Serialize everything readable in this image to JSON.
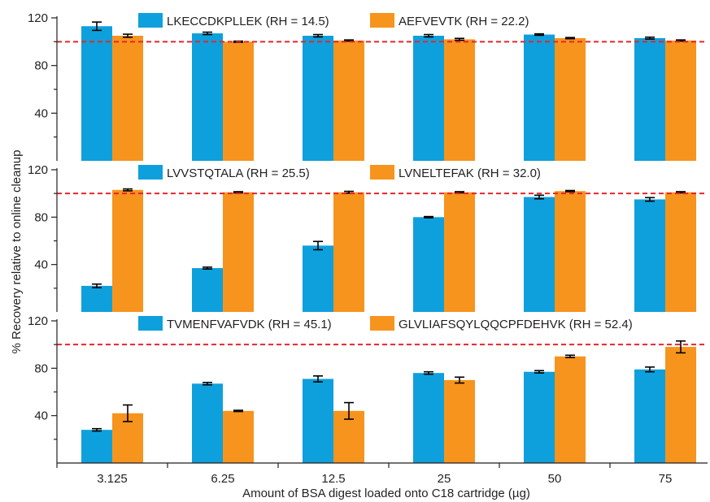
{
  "figure": {
    "ylabel": "% Recovery relative to online cleanup",
    "xlabel": "Amount of BSA digest loaded onto C18 cartridge (µg)"
  },
  "colors": {
    "series_a": "#0ea0dc",
    "series_b": "#f7941d",
    "reference_line": "#e8242a",
    "axis": "#231f20"
  },
  "chart_data": [
    {
      "type": "bar",
      "categories": [
        "3.125",
        "6.25",
        "12.5",
        "25",
        "50",
        "75"
      ],
      "ylim": [
        0,
        120
      ],
      "yticks": [
        40,
        80,
        120
      ],
      "reference_line": 100,
      "series": [
        {
          "name": "LKECCDKPLLEK (RH = 14.5)",
          "values": [
            113,
            107,
            105,
            105,
            106,
            103
          ],
          "errors": [
            3.5,
            1,
            1,
            1,
            0.6,
            0.8
          ]
        },
        {
          "name": "AEFVEVTK (RH = 22.2)",
          "values": [
            105,
            100,
            101,
            102,
            103,
            101
          ],
          "errors": [
            1.3,
            0.5,
            0.5,
            0.8,
            0.5,
            0.5
          ]
        }
      ]
    },
    {
      "type": "bar",
      "categories": [
        "3.125",
        "6.25",
        "12.5",
        "25",
        "50",
        "75"
      ],
      "ylim": [
        0,
        120
      ],
      "yticks": [
        40,
        80,
        120
      ],
      "reference_line": 100,
      "series": [
        {
          "name": "LVVSTQTALA (RH = 25.5)",
          "values": [
            22,
            37,
            56,
            80,
            97,
            95
          ],
          "errors": [
            1.5,
            0.8,
            3.5,
            0.5,
            1.5,
            1.5
          ]
        },
        {
          "name": "LVNELTEFAK (RH = 32.0)",
          "values": [
            103,
            101,
            101,
            101,
            102,
            101
          ],
          "errors": [
            0.8,
            0.5,
            0.8,
            0.5,
            0.5,
            0.5
          ]
        }
      ]
    },
    {
      "type": "bar",
      "categories": [
        "3.125",
        "6.25",
        "12.5",
        "25",
        "50",
        "75"
      ],
      "ylim": [
        0,
        120
      ],
      "yticks": [
        40,
        80,
        120
      ],
      "reference_line": 100,
      "series": [
        {
          "name": "TVMENFVAFVDK (RH = 45.1)",
          "values": [
            28,
            67,
            71,
            76,
            77,
            79
          ],
          "errors": [
            1,
            1,
            2.5,
            1,
            1,
            2
          ]
        },
        {
          "name": "GLVLIAFSQYLQQCPFDEHVK (RH = 52.4)",
          "values": [
            42,
            44,
            44,
            70,
            90,
            98
          ],
          "errors": [
            7,
            0.5,
            7,
            2.5,
            1,
            5
          ]
        }
      ]
    }
  ]
}
